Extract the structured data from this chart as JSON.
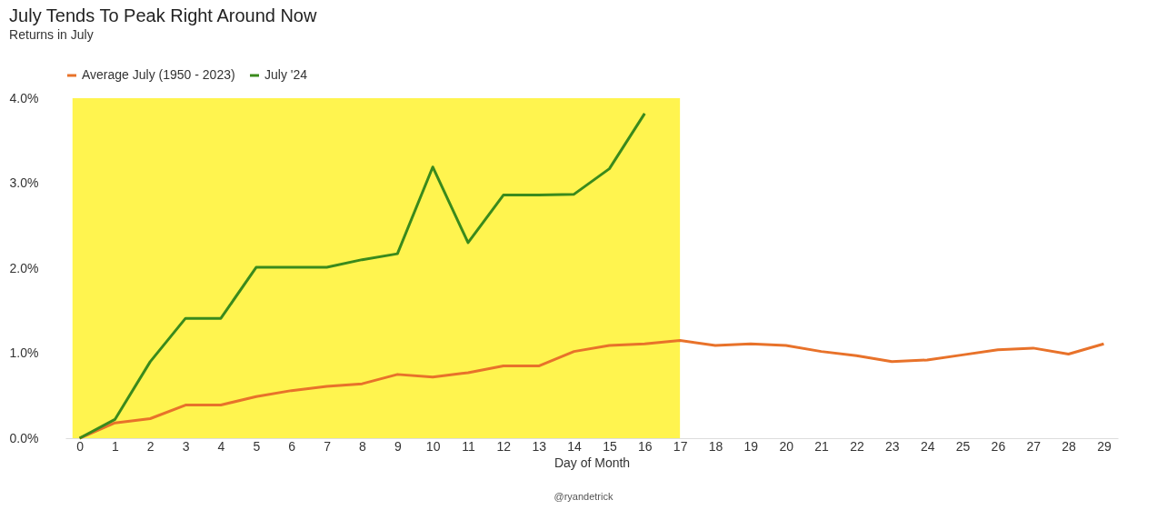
{
  "chart_data": {
    "type": "line",
    "title": "July Tends To Peak Right Around Now",
    "subtitle": "Returns in July",
    "xlabel": "Day of Month",
    "x": [
      0,
      1,
      2,
      3,
      4,
      5,
      6,
      7,
      8,
      9,
      10,
      11,
      12,
      13,
      14,
      15,
      16,
      17,
      18,
      19,
      20,
      21,
      22,
      23,
      24,
      25,
      26,
      27,
      28,
      29
    ],
    "series": [
      {
        "name": "Average July (1950 - 2023)",
        "color": "#e8722a",
        "values": [
          0,
          0.18,
          0.23,
          0.39,
          0.39,
          0.49,
          0.56,
          0.61,
          0.64,
          0.75,
          0.72,
          0.77,
          0.85,
          0.85,
          1.02,
          1.09,
          1.11,
          1.15,
          1.09,
          1.11,
          1.09,
          1.02,
          0.97,
          0.9,
          0.92,
          0.98,
          1.04,
          1.06,
          0.99,
          1.11
        ]
      },
      {
        "name": "July '24",
        "color": "#3a8a1c",
        "values": [
          0,
          0.22,
          0.9,
          1.41,
          1.41,
          2.01,
          2.01,
          2.01,
          2.1,
          2.17,
          3.19,
          2.3,
          2.86,
          2.86,
          2.87,
          3.17,
          3.82,
          null,
          null,
          null,
          null,
          null,
          null,
          null,
          null,
          null,
          null,
          null,
          null,
          null
        ]
      }
    ],
    "xlim": [
      -0.4,
      29.4
    ],
    "xticks": [
      0,
      1,
      2,
      3,
      4,
      5,
      6,
      7,
      8,
      9,
      10,
      11,
      12,
      13,
      14,
      15,
      16,
      17,
      18,
      19,
      20,
      21,
      22,
      23,
      24,
      25,
      26,
      27,
      28,
      29
    ],
    "ylim": [
      0,
      4
    ],
    "yticks": [
      {
        "value": 0,
        "label": "0.0%"
      },
      {
        "value": 1,
        "label": "1.0%"
      },
      {
        "value": 2,
        "label": "2.0%"
      },
      {
        "value": 3,
        "label": "3.0%"
      },
      {
        "value": 4,
        "label": "4.0%"
      }
    ],
    "bands": [
      {
        "axis": "x",
        "from": -0.2,
        "to": 17,
        "color": "#fff44f"
      }
    ],
    "legend": "top",
    "grid": false,
    "marker": "none",
    "line_style": "solid",
    "annotations": [
      "@ryandetrick"
    ]
  }
}
